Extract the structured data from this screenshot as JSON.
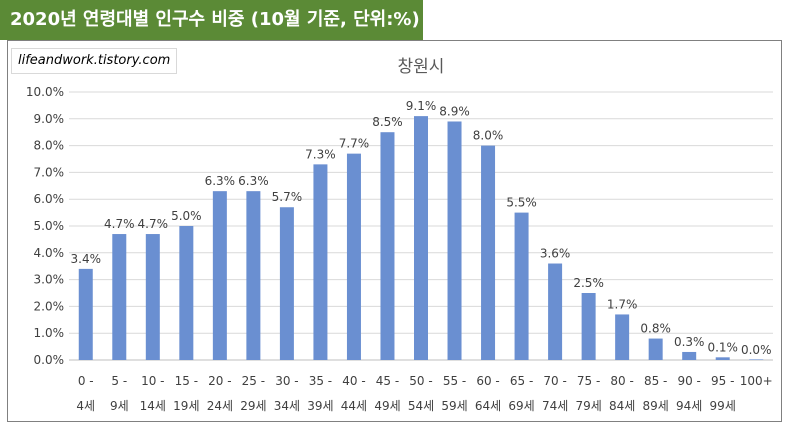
{
  "banner": {
    "title": "2020년 연령대별 인구수 비중 (10월 기준, 단위:%)"
  },
  "watermark": "lifeandwork.tistory.com",
  "colors": {
    "banner": "#5b8a36",
    "bar": "#6a8fd1",
    "grid": "#d9d9d9",
    "text": "#404040"
  },
  "chart_data": {
    "type": "bar",
    "title": "창원시",
    "xlabel": "",
    "ylabel": "",
    "ylim": [
      0,
      10
    ],
    "y_ticks": [
      "0.0%",
      "1.0%",
      "2.0%",
      "3.0%",
      "4.0%",
      "5.0%",
      "6.0%",
      "7.0%",
      "8.0%",
      "9.0%",
      "10.0%"
    ],
    "categories": [
      [
        "0 -",
        "4세"
      ],
      [
        "5 -",
        "9세"
      ],
      [
        "10 -",
        "14세"
      ],
      [
        "15 -",
        "19세"
      ],
      [
        "20 -",
        "24세"
      ],
      [
        "25 -",
        "29세"
      ],
      [
        "30 -",
        "34세"
      ],
      [
        "35 -",
        "39세"
      ],
      [
        "40 -",
        "44세"
      ],
      [
        "45 -",
        "49세"
      ],
      [
        "50 -",
        "54세"
      ],
      [
        "55 -",
        "59세"
      ],
      [
        "60 -",
        "64세"
      ],
      [
        "65 -",
        "69세"
      ],
      [
        "70 -",
        "74세"
      ],
      [
        "75 -",
        "79세"
      ],
      [
        "80 -",
        "84세"
      ],
      [
        "85 -",
        "89세"
      ],
      [
        "90 -",
        "94세"
      ],
      [
        "95 -",
        "99세"
      ],
      [
        "100+",
        ""
      ]
    ],
    "values": [
      3.4,
      4.7,
      4.7,
      5.0,
      6.3,
      6.3,
      5.7,
      7.3,
      7.7,
      8.5,
      9.1,
      8.9,
      8.0,
      5.5,
      3.6,
      2.5,
      1.7,
      0.8,
      0.3,
      0.1,
      0.0
    ],
    "labels": [
      "3.4%",
      "4.7%",
      "4.7%",
      "5.0%",
      "6.3%",
      "6.3%",
      "5.7%",
      "7.3%",
      "7.7%",
      "8.5%",
      "9.1%",
      "8.9%",
      "8.0%",
      "5.5%",
      "3.6%",
      "2.5%",
      "1.7%",
      "0.8%",
      "0.3%",
      "0.1%",
      "0.0%"
    ],
    "legend": "none",
    "grid": true
  }
}
